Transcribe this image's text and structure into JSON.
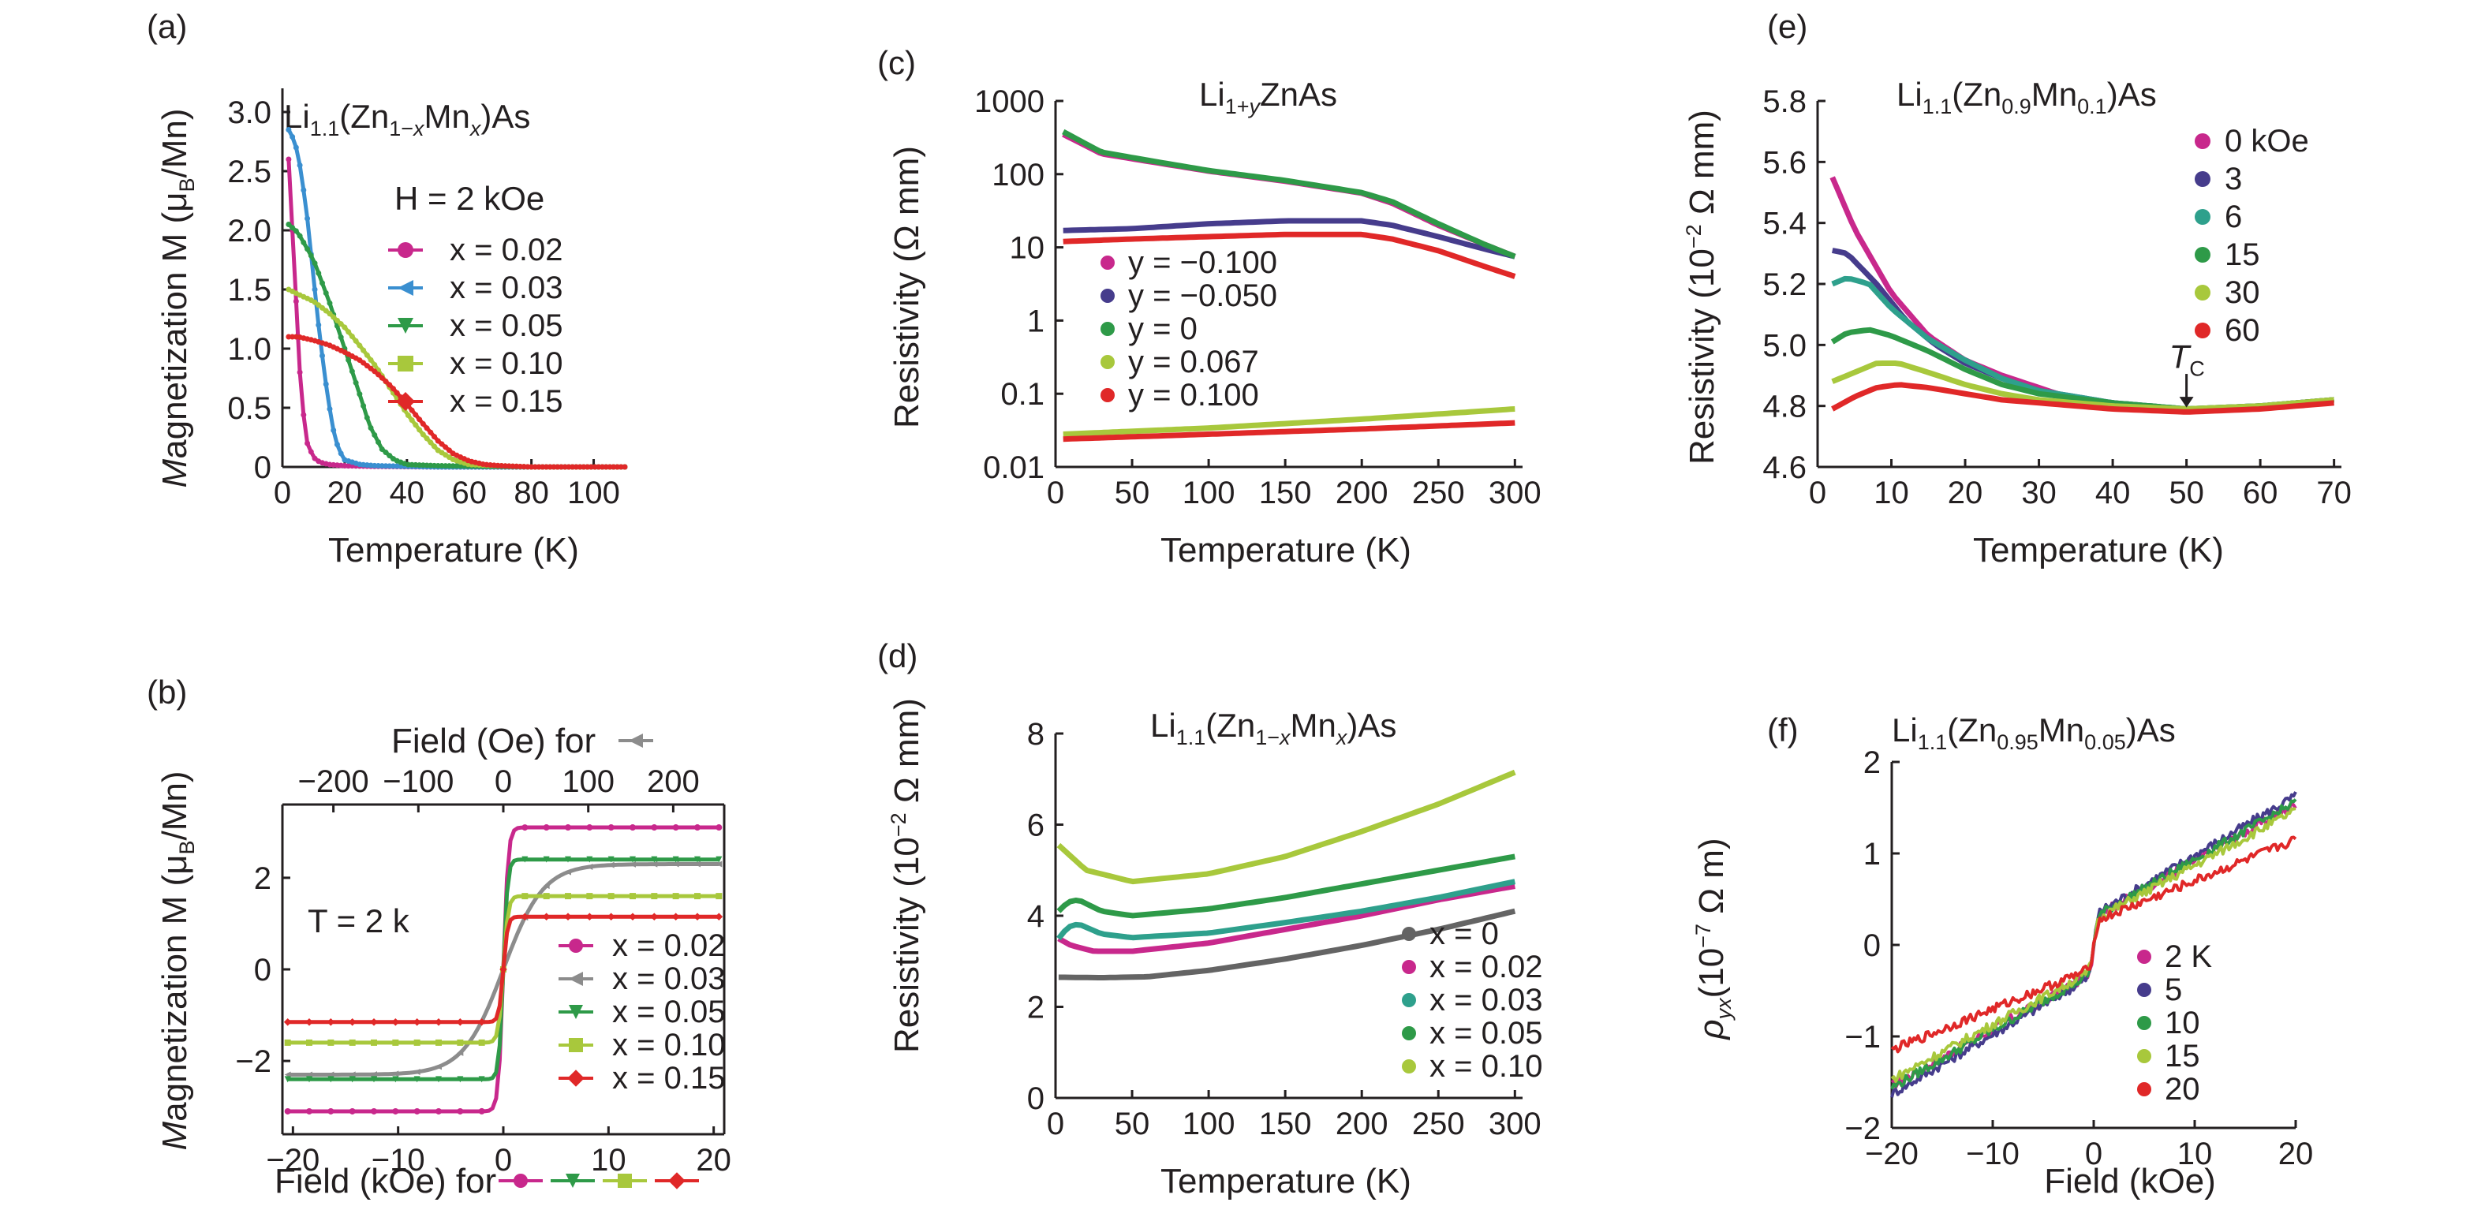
{
  "panels": [
    {
      "id": "a",
      "label": "(a)",
      "title": {
        "pre": "Li",
        "sub1": "1.1",
        "mid": "(Zn",
        "sub2": "1−",
        "sub2i": "x",
        "mid2": "Mn",
        "sub3i": "x",
        "post": ")As"
      },
      "annotation": "H = 2 kOe",
      "xlabel": "Temperature (K)",
      "ylabel": "Magnetization M (μB/Mn)",
      "chart_data": {
        "type": "line",
        "xlim": [
          0,
          110
        ],
        "ylim": [
          0,
          3.2
        ],
        "xticks": [
          0,
          20,
          40,
          60,
          80,
          100
        ],
        "yticks": [
          0,
          0.5,
          1.0,
          1.5,
          2.0,
          2.5,
          3.0
        ],
        "ytick_labels": [
          "0",
          "0.5",
          "1.0",
          "1.5",
          "2.0",
          "2.5",
          "3.0"
        ],
        "series": [
          {
            "name": "x = 0.02",
            "color": "#c8288c",
            "marker": "circle",
            "x": [
              2,
              4,
              6,
              8,
              10,
              12,
              15,
              20,
              30,
              50,
              80,
              110
            ],
            "y": [
              2.6,
              1.6,
              0.6,
              0.2,
              0.08,
              0.04,
              0.02,
              0.01,
              0.005,
              0,
              0,
              0
            ]
          },
          {
            "name": "x = 0.03",
            "color": "#3a8fd0",
            "marker": "triangle-left",
            "x": [
              2,
              4,
              6,
              8,
              10,
              12,
              14,
              16,
              18,
              20,
              25,
              30,
              50,
              80,
              110
            ],
            "y": [
              2.85,
              2.75,
              2.5,
              2.1,
              1.6,
              1.1,
              0.7,
              0.35,
              0.15,
              0.06,
              0.02,
              0.01,
              0,
              0,
              0
            ]
          },
          {
            "name": "x = 0.05",
            "color": "#2e9a48",
            "marker": "triangle-down",
            "x": [
              2,
              5,
              10,
              15,
              20,
              25,
              28,
              32,
              36,
              40,
              50,
              80,
              110
            ],
            "y": [
              2.05,
              1.98,
              1.75,
              1.4,
              1.0,
              0.6,
              0.35,
              0.15,
              0.06,
              0.02,
              0.01,
              0,
              0
            ]
          },
          {
            "name": "x = 0.10",
            "color": "#a8c83c",
            "marker": "square",
            "x": [
              2,
              5,
              10,
              15,
              20,
              25,
              30,
              35,
              40,
              45,
              50,
              55,
              60,
              70,
              80,
              110
            ],
            "y": [
              1.5,
              1.46,
              1.4,
              1.3,
              1.18,
              1.02,
              0.85,
              0.65,
              0.45,
              0.28,
              0.14,
              0.06,
              0.02,
              0.01,
              0,
              0
            ]
          },
          {
            "name": "x = 0.15",
            "color": "#e02828",
            "marker": "diamond",
            "x": [
              2,
              5,
              10,
              15,
              20,
              25,
              30,
              35,
              40,
              45,
              50,
              55,
              60,
              65,
              70,
              80,
              110
            ],
            "y": [
              1.1,
              1.1,
              1.07,
              1.03,
              0.97,
              0.9,
              0.8,
              0.68,
              0.53,
              0.37,
              0.22,
              0.11,
              0.05,
              0.02,
              0.01,
              0,
              0
            ]
          }
        ]
      }
    },
    {
      "id": "b",
      "label": "(b)",
      "annotation": "T = 2 k",
      "xlabel": "Field (kOe) for",
      "x2label": "Field (Oe) for",
      "ylabel": "Magnetization M (μB/Mn)",
      "chart_data": {
        "type": "line",
        "xlim": [
          -21,
          21
        ],
        "ylim": [
          -3.6,
          3.6
        ],
        "x2lim": [
          -260,
          260
        ],
        "xticks": [
          -20,
          -10,
          0,
          10,
          20
        ],
        "xtick_labels": [
          "−20",
          "−10",
          "0",
          "10",
          "20"
        ],
        "x2ticks": [
          -200,
          -100,
          0,
          100,
          200
        ],
        "x2tick_labels": [
          "−200",
          "−100",
          "0",
          "100",
          "200"
        ],
        "yticks": [
          -2,
          0,
          2
        ],
        "ytick_labels": [
          "−2",
          "0",
          "2"
        ],
        "series": [
          {
            "name": "x = 0.02",
            "color": "#c8288c",
            "marker": "circle",
            "sat": 3.1,
            "width": 0.45
          },
          {
            "name": "x = 0.03",
            "color": "#8c8c8c",
            "marker": "triangle-left",
            "sat": 2.3,
            "width": 3.8,
            "top_axis": true
          },
          {
            "name": "x = 0.05",
            "color": "#2e9a48",
            "marker": "triangle-down",
            "sat": 2.4,
            "width": 0.4
          },
          {
            "name": "x = 0.10",
            "color": "#a8c83c",
            "marker": "square",
            "sat": 1.6,
            "width": 0.45
          },
          {
            "name": "x = 0.15",
            "color": "#e02828",
            "marker": "diamond",
            "sat": 1.15,
            "width": 0.4
          }
        ]
      }
    },
    {
      "id": "c",
      "label": "(c)",
      "title": {
        "pre": "Li",
        "sub1": "1+",
        "sub1i": "y",
        "post": "ZnAs"
      },
      "xlabel": "Temperature (K)",
      "ylabel": "Resistivity (Ω mm)",
      "chart_data": {
        "type": "line",
        "yscale": "log",
        "xlim": [
          0,
          305
        ],
        "ylim": [
          0.01,
          1000
        ],
        "xticks": [
          0,
          50,
          100,
          150,
          200,
          250,
          300
        ],
        "yticks": [
          0.01,
          0.1,
          1,
          10,
          100,
          1000
        ],
        "ytick_labels": [
          "0.01",
          "0.1",
          "1",
          "10",
          "100",
          "1000"
        ],
        "series": [
          {
            "name": "y = −0.100",
            "color": "#c8288c",
            "x": [
              5,
              30,
              60,
              100,
              150,
              200,
              220,
              250,
              280,
              300
            ],
            "y": [
              350,
              190,
              150,
              110,
              80,
              55,
              40,
              20,
              11,
              7.5
            ]
          },
          {
            "name": "y = −0.050",
            "color": "#463c8c",
            "x": [
              5,
              50,
              100,
              150,
              200,
              220,
              250,
              280,
              300
            ],
            "y": [
              17,
              18,
              21,
              23,
              23,
              20,
              14,
              9.5,
              7.5
            ]
          },
          {
            "name": "y = 0",
            "color": "#2e9a48",
            "x": [
              5,
              30,
              60,
              100,
              150,
              200,
              220,
              250,
              280,
              300
            ],
            "y": [
              380,
              200,
              155,
              112,
              82,
              56,
              42,
              21,
              11,
              7.5
            ]
          },
          {
            "name": "y = 0.067",
            "color": "#a8c83c",
            "x": [
              5,
              100,
              200,
              300
            ],
            "y": [
              0.028,
              0.034,
              0.045,
              0.062
            ]
          },
          {
            "name": "y = 0.100",
            "color": "#e02828",
            "x": [
              5,
              50,
              100,
              150,
              200,
              220,
              250,
              280,
              300
            ],
            "y": [
              12,
              13,
              14,
              15,
              15,
              13,
              9,
              5.5,
              4
            ]
          },
          {
            "name": "",
            "color": "#e02828",
            "x": [
              5,
              100,
              200,
              300
            ],
            "y": [
              0.024,
              0.028,
              0.033,
              0.04
            ]
          }
        ]
      }
    },
    {
      "id": "d",
      "label": "(d)",
      "title": {
        "pre": "Li",
        "sub1": "1.1",
        "mid": "(Zn",
        "sub2": "1−",
        "sub2i": "x",
        "mid2": "Mn",
        "sub3i": "x",
        "post": ")As"
      },
      "xlabel": "Temperature (K)",
      "ylabel": "Resistivity (10−2 Ω mm)",
      "chart_data": {
        "type": "line",
        "xlim": [
          0,
          305
        ],
        "ylim": [
          0,
          8
        ],
        "xticks": [
          0,
          50,
          100,
          150,
          200,
          250,
          300
        ],
        "yticks": [
          0,
          2,
          4,
          6,
          8
        ],
        "series": [
          {
            "name": "x = 0",
            "color": "#646464",
            "x": [
              2,
              30,
              60,
              100,
              150,
              200,
              250,
              300
            ],
            "y": [
              2.65,
              2.64,
              2.66,
              2.8,
              3.05,
              3.35,
              3.7,
              4.1
            ]
          },
          {
            "name": "x = 0.02",
            "color": "#c8288c",
            "x": [
              2,
              10,
              25,
              50,
              100,
              150,
              200,
              250,
              300
            ],
            "y": [
              3.5,
              3.35,
              3.22,
              3.22,
              3.4,
              3.7,
              4.0,
              4.35,
              4.65
            ]
          },
          {
            "name": "x = 0.03",
            "color": "#2ea08c",
            "x": [
              2,
              8,
              15,
              30,
              50,
              100,
              150,
              200,
              250,
              300
            ],
            "y": [
              3.5,
              3.75,
              3.82,
              3.6,
              3.52,
              3.62,
              3.85,
              4.1,
              4.4,
              4.75
            ]
          },
          {
            "name": "x = 0.05",
            "color": "#2e9a48",
            "x": [
              2,
              8,
              15,
              30,
              50,
              100,
              150,
              200,
              250,
              300
            ],
            "y": [
              4.1,
              4.3,
              4.35,
              4.1,
              4.0,
              4.15,
              4.4,
              4.7,
              5.0,
              5.3
            ]
          },
          {
            "name": "x = 0.10",
            "color": "#a8c83c",
            "x": [
              2,
              20,
              50,
              100,
              150,
              200,
              250,
              300
            ],
            "y": [
              5.55,
              5.0,
              4.75,
              4.92,
              5.3,
              5.85,
              6.45,
              7.15
            ]
          }
        ]
      }
    },
    {
      "id": "e",
      "label": "(e)",
      "title": {
        "pre": "Li",
        "sub1": "1.1",
        "mid": "(Zn",
        "sub2": "0.9",
        "mid2": "Mn",
        "sub3": "0.1",
        "post": ")As"
      },
      "annotation": "TC",
      "xlabel": "Temperature (K)",
      "ylabel": "Resistivity (10−2 Ω mm)",
      "chart_data": {
        "type": "line",
        "xlim": [
          0,
          71
        ],
        "ylim": [
          4.6,
          5.8
        ],
        "xticks": [
          0,
          10,
          20,
          30,
          40,
          50,
          60,
          70
        ],
        "yticks": [
          4.6,
          4.8,
          5.0,
          5.2,
          5.4,
          5.6,
          5.8
        ],
        "ytick_labels": [
          "4.6",
          "4.8",
          "5.0",
          "5.2",
          "5.4",
          "5.6",
          "5.8"
        ],
        "series": [
          {
            "name": "0 kOe",
            "color": "#c8288c",
            "x": [
              2,
              5,
              10,
              15,
              20,
              25,
              30,
              35,
              40,
              45,
              50,
              55,
              60,
              65,
              70
            ],
            "y": [
              5.55,
              5.38,
              5.17,
              5.03,
              4.95,
              4.9,
              4.86,
              4.82,
              4.8,
              4.79,
              4.79,
              4.79,
              4.8,
              4.81,
              4.82
            ]
          },
          {
            "name": "3",
            "color": "#463c8c",
            "x": [
              2,
              4,
              8,
              12,
              16,
              20,
              25,
              30,
              40,
              50,
              60,
              70
            ],
            "y": [
              5.31,
              5.3,
              5.2,
              5.08,
              5.0,
              4.94,
              4.89,
              4.85,
              4.81,
              4.79,
              4.8,
              4.82
            ]
          },
          {
            "name": "6",
            "color": "#2ea08c",
            "x": [
              2,
              4,
              7,
              10,
              15,
              20,
              25,
              30,
              40,
              50,
              60,
              70
            ],
            "y": [
              5.2,
              5.22,
              5.2,
              5.12,
              5.02,
              4.95,
              4.89,
              4.85,
              4.81,
              4.79,
              4.8,
              4.82
            ]
          },
          {
            "name": "15",
            "color": "#2e9a48",
            "x": [
              2,
              4,
              7,
              10,
              15,
              20,
              25,
              30,
              40,
              50,
              60,
              70
            ],
            "y": [
              5.01,
              5.04,
              5.05,
              5.03,
              4.98,
              4.92,
              4.87,
              4.84,
              4.81,
              4.79,
              4.8,
              4.82
            ]
          },
          {
            "name": "30",
            "color": "#a8c83c",
            "x": [
              2,
              5,
              8,
              11,
              15,
              20,
              25,
              30,
              40,
              50,
              60,
              70
            ],
            "y": [
              4.88,
              4.91,
              4.94,
              4.94,
              4.91,
              4.87,
              4.84,
              4.82,
              4.8,
              4.79,
              4.8,
              4.82
            ]
          },
          {
            "name": "60",
            "color": "#e02828",
            "x": [
              2,
              5,
              8,
              11,
              15,
              20,
              25,
              30,
              40,
              50,
              60,
              70
            ],
            "y": [
              4.79,
              4.83,
              4.86,
              4.87,
              4.86,
              4.84,
              4.82,
              4.81,
              4.79,
              4.78,
              4.79,
              4.81
            ]
          }
        ]
      }
    },
    {
      "id": "f",
      "label": "(f)",
      "title": {
        "pre": "Li",
        "sub1": "1.1",
        "mid": "(Zn",
        "sub2": "0.95",
        "mid2": "Mn",
        "sub3": "0.05",
        "post": ")As"
      },
      "xlabel": "Field (kOe)",
      "ylabel": "ρyx(10−7 Ω m)",
      "chart_data": {
        "type": "line",
        "xlim": [
          -20,
          20
        ],
        "ylim": [
          -2,
          2
        ],
        "xticks": [
          -20,
          -10,
          0,
          10,
          20
        ],
        "xtick_labels": [
          "−20",
          "−10",
          "0",
          "10",
          "20"
        ],
        "yticks": [
          -2,
          -1,
          0,
          1,
          2
        ],
        "ytick_labels": [
          "−2",
          "−1",
          "0",
          "1",
          "2"
        ],
        "series": [
          {
            "name": "2 K",
            "color": "#c8288c",
            "slope": 0.062,
            "jump": 0.3
          },
          {
            "name": "5",
            "color": "#463c8c",
            "slope": 0.065,
            "jump": 0.33
          },
          {
            "name": "10",
            "color": "#2e9a48",
            "slope": 0.063,
            "jump": 0.3
          },
          {
            "name": "15",
            "color": "#a8c83c",
            "slope": 0.06,
            "jump": 0.27
          },
          {
            "name": "20",
            "color": "#e02828",
            "slope": 0.045,
            "jump": 0.25
          }
        ]
      }
    }
  ]
}
